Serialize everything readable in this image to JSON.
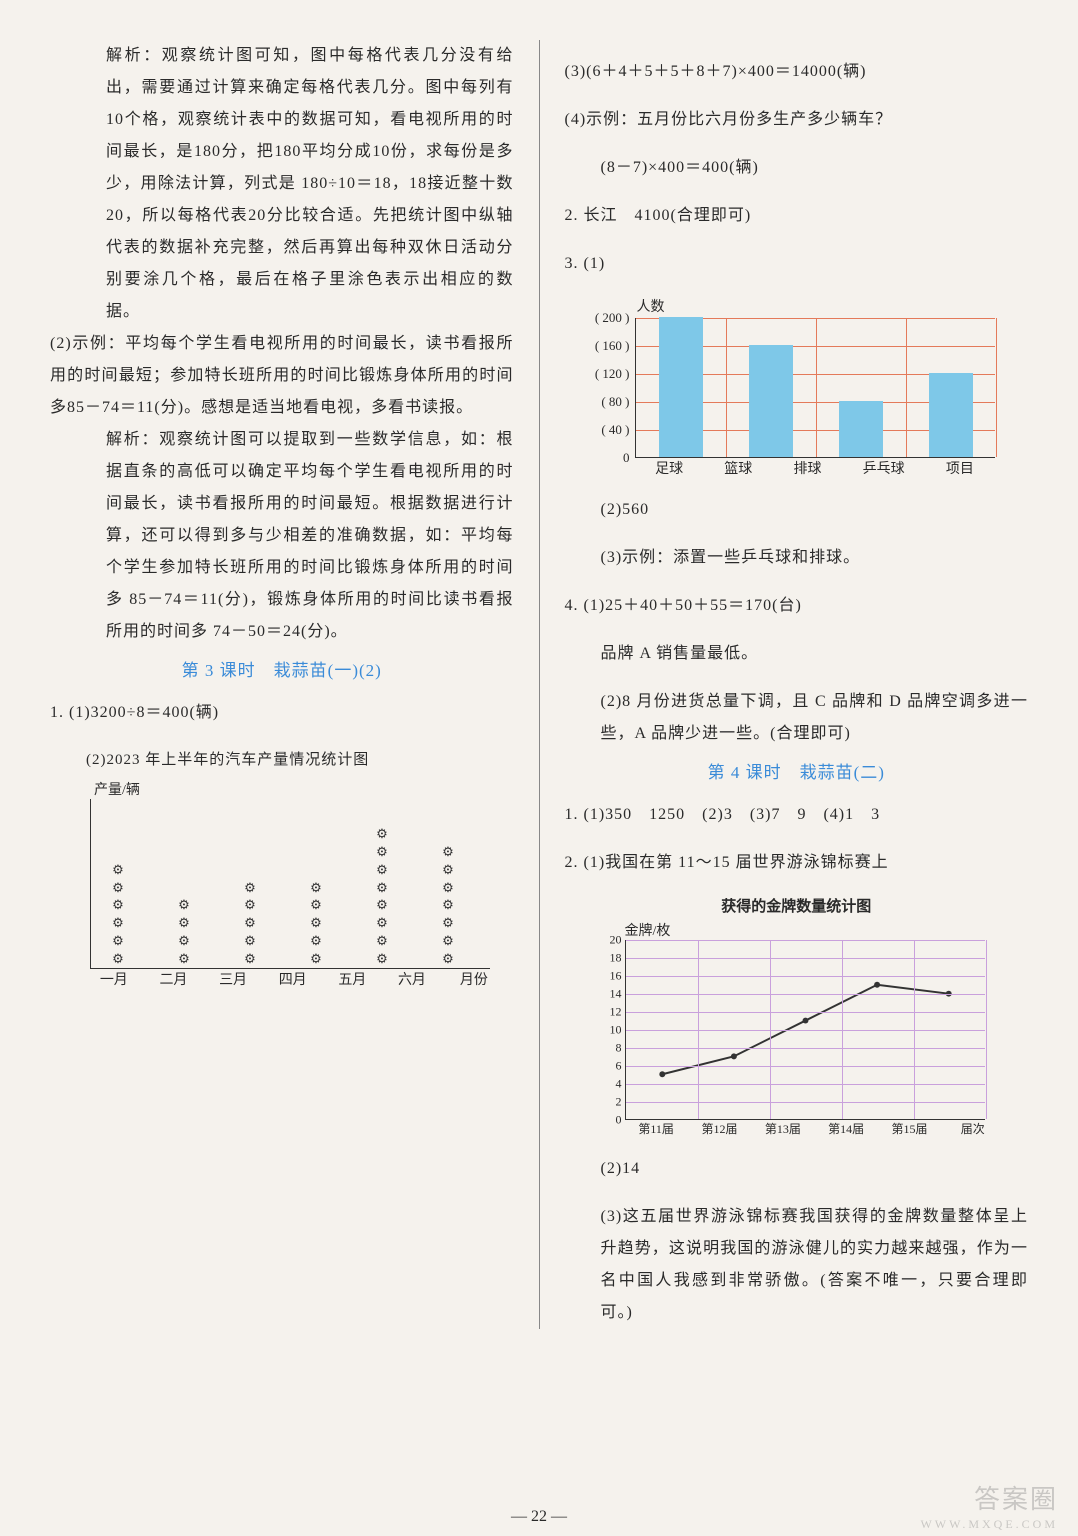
{
  "left": {
    "p1": "解析：观察统计图可知，图中每格代表几分没有给出，需要通过计算来确定每格代表几分。图中每列有10个格，观察统计表中的数据可知，看电视所用的时间最长，是180分，把180平均分成10份，求每份是多少，用除法计算，列式是 180÷10＝18，18接近整十数20，所以每格代表20分比较合适。先把统计图中纵轴代表的数据补充完整，然后再算出每种双休日活动分别要涂几个格，最后在格子里涂色表示出相应的数据。",
    "p2_label": "(2)示例：",
    "p2": "平均每个学生看电视所用的时间最长，读书看报所用的时间最短；参加特长班所用的时间比锻炼身体所用的时间多85－74＝11(分)。感想是适当地看电视，多看书读报。",
    "p3": "解析：观察统计图可以提取到一些数学信息，如：根据直条的高低可以确定平均每个学生看电视所用的时间最长，读书看报所用的时间最短。根据数据进行计算，还可以得到多与少相差的准确数据，如：平均每个学生参加特长班所用的时间比锻炼身体所用的时间多 85－74＝11(分)，锻炼身体所用的时间比读书看报所用的时间多 74－50＝24(分)。",
    "section3_title": "第 3 课时　栽蒜苗(一)(2)",
    "q1_1": "1. (1)3200÷8＝400(辆)",
    "q1_2_title": "(2)2023 年上半年的汽车产量情况统计图",
    "picto": {
      "y_title": "产量/辆",
      "x_title": "月份",
      "months": [
        "一月",
        "二月",
        "三月",
        "四月",
        "五月",
        "六月"
      ],
      "counts": [
        6,
        4,
        5,
        5,
        8,
        7
      ],
      "icon": "⚙"
    }
  },
  "right": {
    "l1": "(3)(6＋4＋5＋5＋8＋7)×400＝14000(辆)",
    "l2": "(4)示例：五月份比六月份多生产多少辆车？",
    "l3": "(8－7)×400＝400(辆)",
    "l4": "2. 长江　4100(合理即可)",
    "q3_label": "3. (1)",
    "barchart": {
      "y_title": "人数",
      "x_title": "项目",
      "cats": [
        "足球",
        "篮球",
        "排球",
        "乒乓球"
      ],
      "vals": [
        200,
        160,
        80,
        120
      ],
      "ymax": 200,
      "ytick_step": 40,
      "yticks": [
        "( 200 )",
        "( 160 )",
        "( 120 )",
        "(  80  )",
        "(  40  )",
        "0"
      ],
      "bar_color": "#7ec8e8",
      "grid_color": "#e47a5a"
    },
    "l5": "(2)560",
    "l6": "(3)示例：添置一些乒乓球和排球。",
    "l7": "4. (1)25＋40＋50＋55＝170(台)",
    "l8": "品牌 A 销售量最低。",
    "l9": "(2)8 月份进货总量下调，且 C 品牌和 D 品牌空调多进一些，A 品牌少进一些。(合理即可)",
    "section4_title": "第 4 课时　栽蒜苗(二)",
    "q1": "1. (1)350　1250　(2)3　(3)7　9　(4)1　3",
    "q2_label": "2. (1)我国在第 11～15 届世界游泳锦标赛上",
    "q2_title2": "获得的金牌数量统计图",
    "linechart": {
      "y_title": "金牌/枚",
      "x_title": "届次",
      "x_labels": [
        "第11届",
        "第12届",
        "第13届",
        "第14届",
        "第15届"
      ],
      "yticks": [
        0,
        2,
        4,
        6,
        8,
        10,
        12,
        14,
        16,
        18,
        20
      ],
      "vals": [
        5,
        7,
        11,
        15,
        14
      ],
      "line_color": "#333333",
      "grid_color": "#c9a0dc"
    },
    "l10": "(2)14",
    "l11": "(3)这五届世界游泳锦标赛我国获得的金牌数量整体呈上升趋势，这说明我国的游泳健儿的实力越来越强，作为一名中国人我感到非常骄傲。(答案不唯一，只要合理即可。)"
  },
  "page_num": "—  22  —",
  "watermark": "答案圈",
  "watermark_sub": "WWW.MXQE.COM"
}
